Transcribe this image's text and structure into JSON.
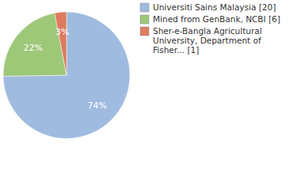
{
  "chart_data": {
    "type": "pie",
    "categories": [
      "Universiti Sains Malaysia [20]",
      "Mined from GenBank, NCBI [6]",
      "Sher-e-Bangla Agricultural University, Department of Fisher... [1]"
    ],
    "values": [
      74,
      22,
      3
    ],
    "value_labels": [
      "74%",
      "22%",
      "3%"
    ],
    "colors": [
      "#9fbbdf",
      "#9dc878",
      "#de7b5f"
    ],
    "data_labels": true,
    "legend": "top-right"
  }
}
